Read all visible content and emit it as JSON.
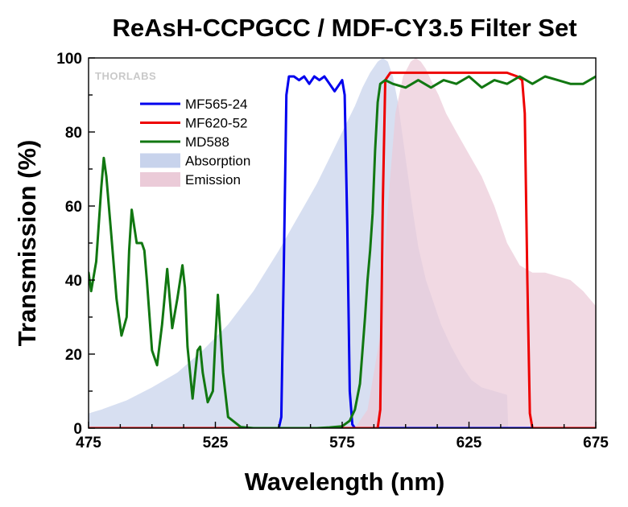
{
  "chart_data": {
    "type": "line",
    "title": "ReAsH-CCPGCC / MDF-CY3.5 Filter Set",
    "xlabel": "Wavelength (nm)",
    "ylabel": "Transmission (%)",
    "xlim": [
      475,
      675
    ],
    "ylim": [
      0,
      100
    ],
    "xticks": [
      "475",
      "525",
      "575",
      "625",
      "675"
    ],
    "yticks": [
      "0",
      "20",
      "40",
      "60",
      "80",
      "100"
    ],
    "grid": false,
    "legend_position": "top-left",
    "logo": "THORLABS",
    "series": [
      {
        "name": "Absorption",
        "kind": "area",
        "color": "#c8d3ec",
        "x": [
          475,
          480,
          490,
          500,
          510,
          520,
          530,
          540,
          550,
          555,
          560,
          565,
          570,
          575,
          580,
          583,
          586,
          589,
          591,
          593,
          595,
          597,
          599,
          601,
          603,
          605,
          608,
          611,
          614,
          618,
          622,
          626,
          630,
          635,
          640,
          640.5
        ],
        "y": [
          4,
          5,
          7.5,
          11,
          15,
          21,
          28,
          37,
          48,
          54,
          60,
          66,
          73,
          80,
          87,
          92,
          96,
          99,
          100,
          99,
          95,
          88,
          78,
          68,
          58,
          49,
          40,
          34,
          28,
          22,
          17,
          13,
          11,
          10,
          9,
          0
        ]
      },
      {
        "name": "Emission",
        "kind": "area",
        "color": "#ebcbd8",
        "x": [
          580,
          585,
          590,
          593,
          596,
          599,
          602,
          604,
          606,
          608,
          610,
          613,
          616,
          620,
          625,
          630,
          635,
          640,
          645,
          650,
          655,
          660,
          665,
          670,
          675
        ],
        "y": [
          0,
          5,
          25,
          60,
          85,
          95,
          99,
          100,
          99,
          97,
          94,
          90,
          85,
          80,
          74,
          68,
          60,
          50,
          44,
          42,
          42,
          41,
          40,
          37,
          33
        ]
      },
      {
        "name": "MF565-24",
        "kind": "line",
        "color": "#0000ee",
        "x": [
          475,
          550,
          551,
          552,
          553,
          554,
          556,
          558,
          560,
          562,
          564,
          566,
          568,
          570,
          572,
          574,
          575,
          576,
          577,
          578,
          579,
          580,
          675
        ],
        "y": [
          0,
          0,
          3,
          45,
          90,
          95,
          95,
          94,
          95,
          93,
          95,
          94,
          95,
          93,
          91,
          93,
          94,
          90,
          55,
          10,
          1,
          0,
          0
        ]
      },
      {
        "name": "MF620-52",
        "kind": "line",
        "color": "#ee0000",
        "x": [
          475,
          589,
          590,
          591,
          592,
          594,
          600,
          610,
          620,
          630,
          640,
          644,
          646,
          647,
          648,
          649,
          650,
          675
        ],
        "y": [
          0,
          0,
          5,
          60,
          94,
          96,
          96,
          96,
          96,
          96,
          96,
          95,
          94,
          85,
          40,
          4,
          0,
          0
        ]
      },
      {
        "name": "MD588",
        "kind": "line",
        "color": "#117711",
        "x": [
          475,
          476,
          478,
          480,
          481,
          482,
          484,
          486,
          488,
          490,
          491,
          492,
          494,
          496,
          497,
          498,
          500,
          502,
          504,
          506,
          507,
          508,
          510,
          512,
          513,
          514,
          516,
          518,
          519,
          520,
          522,
          524,
          525,
          526,
          528,
          530,
          535,
          540,
          545,
          550,
          555,
          560,
          565,
          570,
          575,
          578,
          580,
          582,
          584,
          585,
          586,
          587,
          588,
          589,
          590,
          592,
          595,
          600,
          605,
          610,
          615,
          620,
          625,
          630,
          635,
          640,
          645,
          650,
          655,
          660,
          665,
          670,
          675
        ],
        "y": [
          42,
          37,
          45,
          65,
          73,
          68,
          52,
          35,
          25,
          30,
          48,
          59,
          50,
          50,
          48,
          40,
          21,
          17,
          28,
          43,
          35,
          27,
          35,
          44,
          38,
          22,
          8,
          21,
          22,
          15,
          7,
          10,
          24,
          36,
          15,
          3,
          0.3,
          0,
          0,
          0,
          0,
          0,
          0,
          0.2,
          0.5,
          2,
          5,
          12,
          30,
          40,
          48,
          58,
          75,
          88,
          93,
          94,
          93,
          92,
          94,
          92,
          94,
          93,
          95,
          92,
          94,
          93,
          95,
          93,
          95,
          94,
          93,
          93,
          95
        ]
      }
    ]
  }
}
